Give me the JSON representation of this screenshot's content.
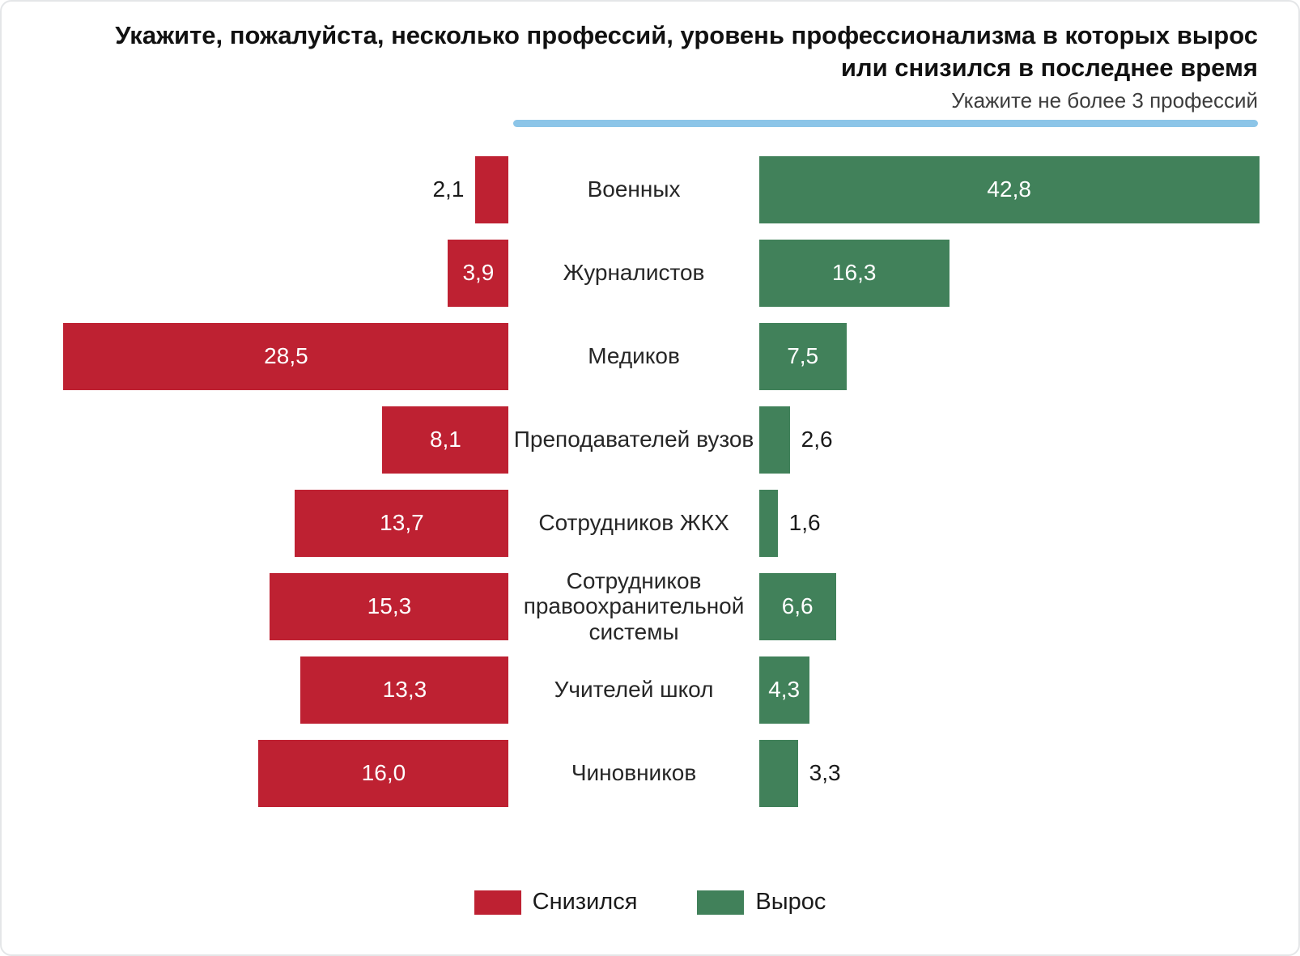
{
  "title": "Укажите, пожалуйста, несколько профессий, уровень профессионализма в которых вырос или снизился в последнее время",
  "subtitle": "Укажите не более 3 профессий",
  "colors": {
    "decrease": "#be2132",
    "increase": "#41815a",
    "accent_line": "#8cc5e8"
  },
  "legend": {
    "decrease_label": "Снизился",
    "increase_label": "Вырос"
  },
  "chart_data": {
    "type": "bar",
    "orientation": "diverging-horizontal",
    "categories": [
      "Военных",
      "Журналистов",
      "Медиков",
      "Преподавателей вузов",
      "Сотрудников ЖКХ",
      "Сотрудников правоохранительной системы",
      "Учителей школ",
      "Чиновников"
    ],
    "series": [
      {
        "name": "Снизился",
        "side": "left",
        "color": "#be2132",
        "values": [
          2.1,
          3.9,
          28.5,
          8.1,
          13.7,
          15.3,
          13.3,
          16.0
        ],
        "labels": [
          "2,1",
          "3,9",
          "28,5",
          "8,1",
          "13,7",
          "15,3",
          "13,3",
          "16,0"
        ]
      },
      {
        "name": "Вырос",
        "side": "right",
        "color": "#41815a",
        "values": [
          42.8,
          16.3,
          7.5,
          2.6,
          1.6,
          6.6,
          4.3,
          3.3
        ],
        "labels": [
          "42,8",
          "16,3",
          "7,5",
          "2,6",
          "1,6",
          "6,6",
          "4,3",
          "3,3"
        ]
      }
    ],
    "value_format": "comma-decimal",
    "grid": false,
    "legend_position": "bottom-center"
  }
}
